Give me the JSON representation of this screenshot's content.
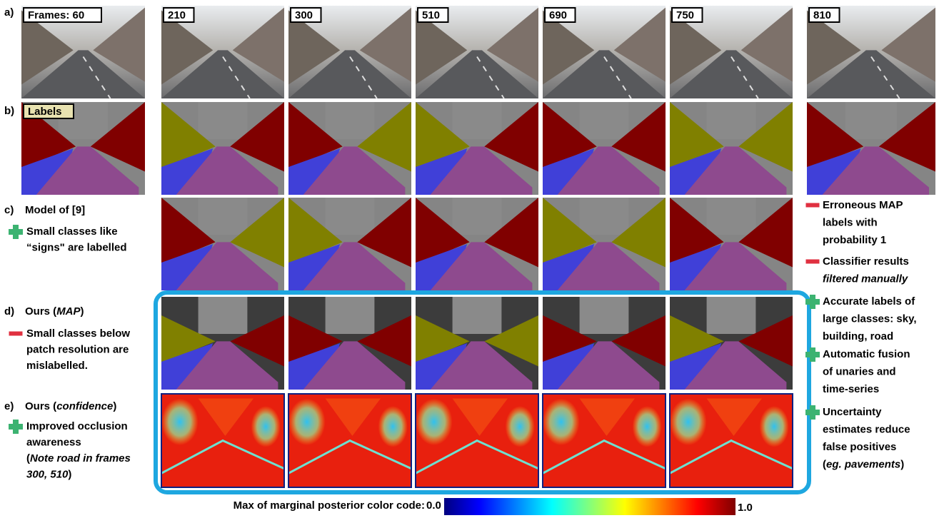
{
  "row_labels": [
    "a)",
    "b)",
    "c)",
    "d)",
    "e)"
  ],
  "frames": [
    "Frames: 60",
    "210",
    "300",
    "510",
    "690",
    "750",
    "810"
  ],
  "labels_tag": "Labels",
  "notes_left": [
    {
      "heading": [
        {
          "t": "Model of [9]"
        }
      ],
      "icon": "plus",
      "lines": [
        [
          {
            "t": "Small classes like"
          }
        ],
        [
          {
            "t": "“signs\" are labelled"
          }
        ]
      ]
    },
    {
      "heading": [
        {
          "t": "Ours ("
        },
        {
          "t": "MAP",
          "i": true
        },
        {
          "t": ")"
        }
      ],
      "icon": "minus",
      "lines": [
        [
          {
            "t": "Small classes below"
          }
        ],
        [
          {
            "t": "patch resolution are"
          }
        ],
        [
          {
            "t": "mislabelled."
          }
        ]
      ]
    },
    {
      "heading": [
        {
          "t": "Ours ("
        },
        {
          "t": "confidence",
          "i": true
        },
        {
          "t": ")"
        }
      ],
      "icon": "plus",
      "lines": [
        [
          {
            "t": "Improved occlusion"
          }
        ],
        [
          {
            "t": "awareness"
          }
        ],
        [
          {
            "t": "("
          },
          {
            "t": "Note road in frames",
            "i": true
          }
        ],
        [
          {
            "t": "300, 510",
            "i": true
          },
          {
            "t": ")"
          }
        ]
      ]
    }
  ],
  "notes_right": [
    {
      "icon": "minus",
      "lines": [
        [
          {
            "t": "Erroneous MAP"
          }
        ],
        [
          {
            "t": "labels with"
          }
        ],
        [
          {
            "t": "probability 1"
          }
        ]
      ]
    },
    {
      "icon": "minus",
      "lines": [
        [
          {
            "t": "Classifier results"
          }
        ],
        [
          {
            "t": "filtered manually",
            "i": true
          }
        ]
      ]
    },
    {
      "icon": "plus",
      "lines": [
        [
          {
            "t": "Accurate labels of"
          }
        ],
        [
          {
            "t": "large classes: sky,"
          }
        ],
        [
          {
            "t": "building, road"
          }
        ]
      ]
    },
    {
      "icon": "plus",
      "lines": [
        [
          {
            "t": "Automatic  fusion"
          }
        ],
        [
          {
            "t": "of unaries  and"
          }
        ],
        [
          {
            "t": "time-series"
          }
        ]
      ]
    },
    {
      "icon": "plus",
      "lines": [
        [
          {
            "t": "Uncertainty"
          }
        ],
        [
          {
            "t": "estimates reduce"
          }
        ],
        [
          {
            "t": "false positives"
          }
        ],
        [
          {
            "t": "("
          },
          {
            "t": "eg. pavements",
            "i": true
          },
          {
            "t": ")"
          }
        ]
      ]
    }
  ],
  "colorbar": {
    "caption": "Max of marginal posterior color code:",
    "min_label": "0.0",
    "max_label": "1.0"
  }
}
